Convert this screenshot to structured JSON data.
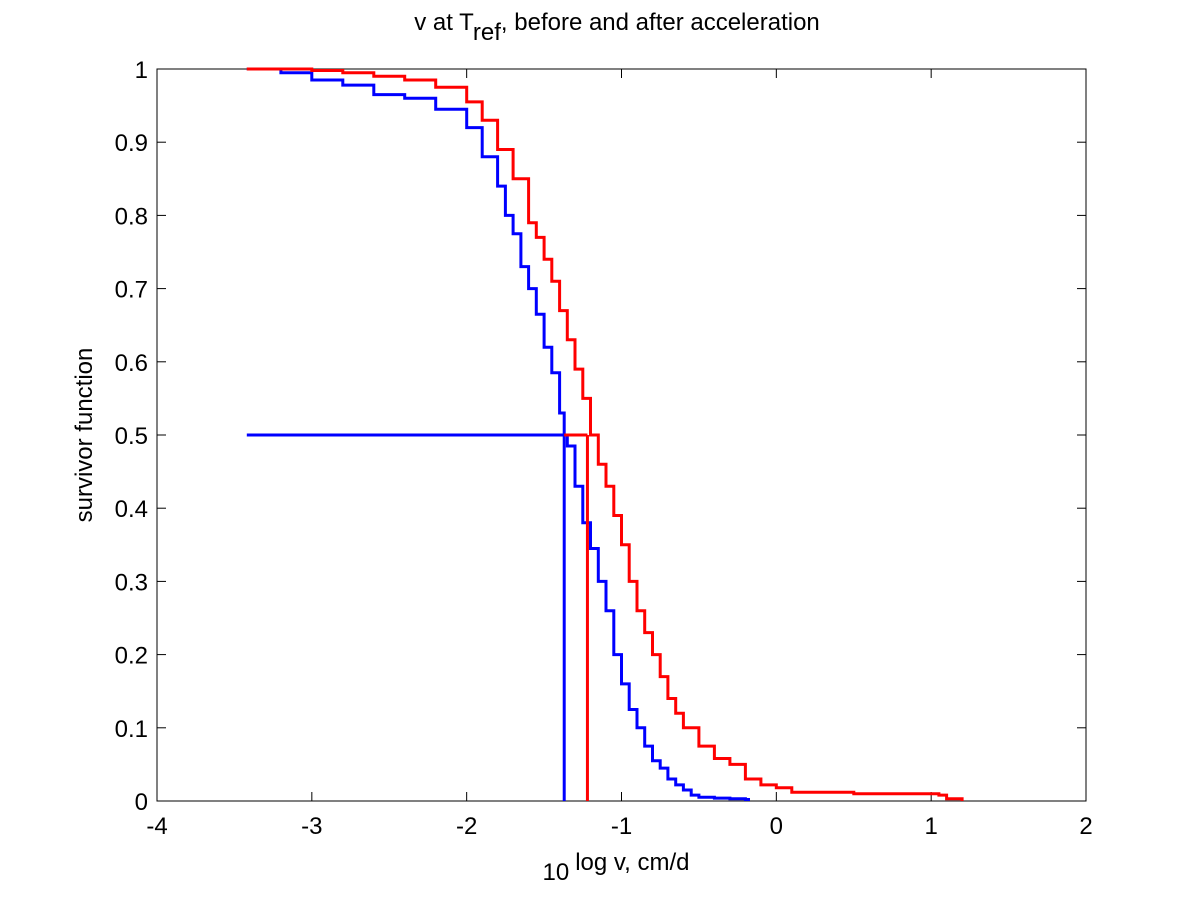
{
  "chart_data": {
    "type": "line",
    "title_main": "v at T",
    "title_sub": "ref",
    "title_rest": ", before and after acceleration",
    "xlabel_sub": "10",
    "xlabel_main": "log v, cm/d",
    "ylabel": "survivor function",
    "xlim": [
      -4,
      2
    ],
    "ylim": [
      0,
      1
    ],
    "xticks": [
      -4,
      -3,
      -2,
      -1,
      0,
      1,
      2
    ],
    "yticks": [
      0,
      0.1,
      0.2,
      0.3,
      0.4,
      0.5,
      0.6,
      0.7,
      0.8,
      0.9,
      1
    ],
    "grid": false,
    "series": [
      {
        "color": "#0000ff",
        "x": [
          -3.42,
          -3.2,
          -3.0,
          -2.8,
          -2.6,
          -2.4,
          -2.2,
          -2.0,
          -1.9,
          -1.8,
          -1.75,
          -1.7,
          -1.65,
          -1.6,
          -1.55,
          -1.5,
          -1.45,
          -1.4,
          -1.37,
          -1.35,
          -1.3,
          -1.25,
          -1.2,
          -1.15,
          -1.1,
          -1.05,
          -1.0,
          -0.95,
          -0.9,
          -0.85,
          -0.8,
          -0.75,
          -0.7,
          -0.65,
          -0.6,
          -0.55,
          -0.5,
          -0.4,
          -0.3,
          -0.2,
          -0.18
        ],
        "y": [
          1.0,
          0.995,
          0.985,
          0.978,
          0.965,
          0.96,
          0.945,
          0.92,
          0.88,
          0.84,
          0.8,
          0.775,
          0.73,
          0.7,
          0.665,
          0.62,
          0.585,
          0.53,
          0.5,
          0.485,
          0.43,
          0.38,
          0.345,
          0.3,
          0.26,
          0.2,
          0.16,
          0.125,
          0.1,
          0.075,
          0.055,
          0.045,
          0.03,
          0.022,
          0.015,
          0.008,
          0.005,
          0.004,
          0.003,
          0.002,
          0.0
        ]
      },
      {
        "color": "#ff0000",
        "x": [
          -3.42,
          -3.0,
          -2.8,
          -2.6,
          -2.4,
          -2.2,
          -2.0,
          -1.9,
          -1.8,
          -1.7,
          -1.6,
          -1.55,
          -1.5,
          -1.45,
          -1.4,
          -1.35,
          -1.3,
          -1.25,
          -1.2,
          -1.15,
          -1.1,
          -1.05,
          -1.0,
          -0.95,
          -0.9,
          -0.85,
          -0.8,
          -0.75,
          -0.7,
          -0.65,
          -0.6,
          -0.5,
          -0.4,
          -0.3,
          -0.2,
          -0.1,
          0.0,
          0.1,
          0.5,
          0.9,
          1.05,
          1.1,
          1.2
        ],
        "y": [
          1.0,
          0.998,
          0.995,
          0.99,
          0.985,
          0.975,
          0.955,
          0.93,
          0.89,
          0.85,
          0.79,
          0.77,
          0.74,
          0.71,
          0.67,
          0.63,
          0.59,
          0.55,
          0.5,
          0.46,
          0.43,
          0.39,
          0.35,
          0.3,
          0.26,
          0.23,
          0.2,
          0.17,
          0.14,
          0.12,
          0.1,
          0.075,
          0.058,
          0.05,
          0.03,
          0.022,
          0.018,
          0.012,
          0.01,
          0.01,
          0.008,
          0.003,
          0.0
        ]
      }
    ],
    "medians": [
      {
        "color": "#0000ff",
        "x": -1.37,
        "y": 0.5,
        "x_start": -3.42
      },
      {
        "color": "#ff0000",
        "x": -1.22,
        "y": 0.5,
        "x_start": -1.37
      }
    ]
  }
}
